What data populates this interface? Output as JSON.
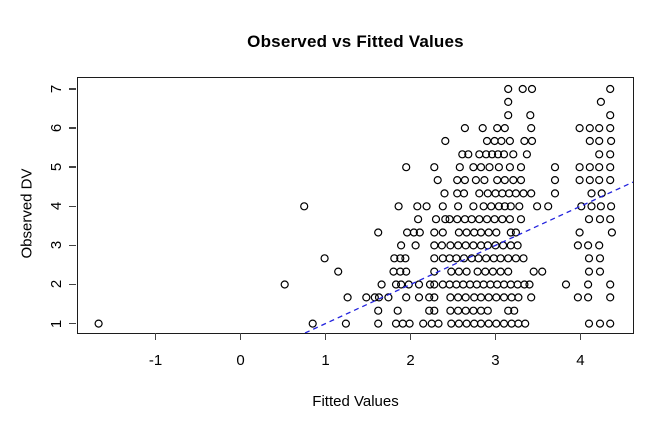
{
  "title": "Observed vs Fitted Values",
  "accent_color": "#2222dd",
  "chart_data": {
    "type": "scatter",
    "title": "Observed vs Fitted Values",
    "xlabel": "Fitted Values",
    "ylabel": "Observed DV",
    "xlim": [
      -1.912,
      4.618
    ],
    "ylim": [
      0.759,
      7.281
    ],
    "x_ticks": [
      -1,
      0,
      1,
      2,
      3,
      4
    ],
    "y_ticks": [
      1,
      2,
      3,
      4,
      5,
      6,
      7
    ],
    "grid": false,
    "legend": "none",
    "marker": {
      "shape": "open-circle",
      "radius_px": 3.5,
      "stroke": "#000000"
    },
    "reference_line": {
      "slope": 1,
      "intercept": 0,
      "style": "dashed",
      "color": "#2222dd",
      "x1": 0.759,
      "y1": 0.759,
      "x2": 4.618,
      "y2": 4.618
    },
    "points": [
      [
        -1.67,
        1
      ],
      [
        0.85,
        1
      ],
      [
        1.24,
        1
      ],
      [
        1.62,
        1
      ],
      [
        1.83,
        1
      ],
      [
        1.91,
        1
      ],
      [
        1.99,
        1
      ],
      [
        2.15,
        1
      ],
      [
        2.25,
        1
      ],
      [
        2.33,
        1
      ],
      [
        2.48,
        1
      ],
      [
        2.57,
        1
      ],
      [
        2.66,
        1
      ],
      [
        2.75,
        1
      ],
      [
        2.83,
        1
      ],
      [
        2.92,
        1
      ],
      [
        3.01,
        1
      ],
      [
        3.1,
        1
      ],
      [
        3.19,
        1
      ],
      [
        3.27,
        1
      ],
      [
        3.35,
        1
      ],
      [
        4.1,
        1
      ],
      [
        4.23,
        1
      ],
      [
        4.35,
        1
      ],
      [
        1.62,
        1.33
      ],
      [
        1.85,
        1.33
      ],
      [
        2.22,
        1.33
      ],
      [
        2.28,
        1.33
      ],
      [
        2.47,
        1.33
      ],
      [
        2.56,
        1.33
      ],
      [
        2.65,
        1.33
      ],
      [
        2.74,
        1.33
      ],
      [
        2.83,
        1.33
      ],
      [
        2.91,
        1.33
      ],
      [
        3.15,
        1.33
      ],
      [
        3.22,
        1.33
      ],
      [
        1.26,
        1.67
      ],
      [
        1.48,
        1.67
      ],
      [
        1.58,
        1.67
      ],
      [
        1.63,
        1.67
      ],
      [
        1.74,
        1.67
      ],
      [
        1.95,
        1.67
      ],
      [
        2.1,
        1.67
      ],
      [
        2.22,
        1.67
      ],
      [
        2.28,
        1.67
      ],
      [
        2.47,
        1.67
      ],
      [
        2.56,
        1.67
      ],
      [
        2.65,
        1.67
      ],
      [
        2.75,
        1.67
      ],
      [
        2.83,
        1.67
      ],
      [
        2.92,
        1.67
      ],
      [
        3.01,
        1.67
      ],
      [
        3.1,
        1.67
      ],
      [
        3.19,
        1.67
      ],
      [
        3.27,
        1.67
      ],
      [
        3.42,
        1.67
      ],
      [
        3.97,
        1.67
      ],
      [
        4.09,
        1.67
      ],
      [
        4.35,
        1.67
      ],
      [
        0.52,
        2
      ],
      [
        1.66,
        2
      ],
      [
        1.83,
        2
      ],
      [
        1.89,
        2
      ],
      [
        1.98,
        2
      ],
      [
        2.1,
        2
      ],
      [
        2.23,
        2
      ],
      [
        2.28,
        2
      ],
      [
        2.38,
        2
      ],
      [
        2.46,
        2
      ],
      [
        2.54,
        2
      ],
      [
        2.62,
        2
      ],
      [
        2.7,
        2
      ],
      [
        2.78,
        2
      ],
      [
        2.86,
        2
      ],
      [
        2.94,
        2
      ],
      [
        3.02,
        2
      ],
      [
        3.1,
        2
      ],
      [
        3.18,
        2
      ],
      [
        3.26,
        2
      ],
      [
        3.34,
        2
      ],
      [
        3.4,
        2
      ],
      [
        3.83,
        2
      ],
      [
        4.09,
        2
      ],
      [
        4.35,
        2
      ],
      [
        1.15,
        2.33
      ],
      [
        1.8,
        2.33
      ],
      [
        1.88,
        2.33
      ],
      [
        1.95,
        2.33
      ],
      [
        2.28,
        2.33
      ],
      [
        2.48,
        2.33
      ],
      [
        2.57,
        2.33
      ],
      [
        2.66,
        2.33
      ],
      [
        2.79,
        2.33
      ],
      [
        2.88,
        2.33
      ],
      [
        2.97,
        2.33
      ],
      [
        3.06,
        2.33
      ],
      [
        3.15,
        2.33
      ],
      [
        3.45,
        2.33
      ],
      [
        3.55,
        2.33
      ],
      [
        4.1,
        2.33
      ],
      [
        4.23,
        2.33
      ],
      [
        0.99,
        2.67
      ],
      [
        1.81,
        2.67
      ],
      [
        1.88,
        2.67
      ],
      [
        1.94,
        2.67
      ],
      [
        2.28,
        2.67
      ],
      [
        2.38,
        2.67
      ],
      [
        2.46,
        2.67
      ],
      [
        2.54,
        2.67
      ],
      [
        2.63,
        2.67
      ],
      [
        2.72,
        2.67
      ],
      [
        2.8,
        2.67
      ],
      [
        2.89,
        2.67
      ],
      [
        2.98,
        2.67
      ],
      [
        3.06,
        2.67
      ],
      [
        3.15,
        2.67
      ],
      [
        3.24,
        2.67
      ],
      [
        3.33,
        2.67
      ],
      [
        4.1,
        2.67
      ],
      [
        4.23,
        2.67
      ],
      [
        1.89,
        3
      ],
      [
        2.06,
        3
      ],
      [
        2.28,
        3
      ],
      [
        2.37,
        3
      ],
      [
        2.47,
        3
      ],
      [
        2.56,
        3
      ],
      [
        2.65,
        3
      ],
      [
        2.74,
        3
      ],
      [
        2.83,
        3
      ],
      [
        2.91,
        3
      ],
      [
        3.0,
        3
      ],
      [
        3.09,
        3
      ],
      [
        3.18,
        3
      ],
      [
        3.26,
        3
      ],
      [
        3.97,
        3
      ],
      [
        4.09,
        3
      ],
      [
        4.22,
        3
      ],
      [
        1.62,
        3.33
      ],
      [
        1.96,
        3.33
      ],
      [
        2.04,
        3.33
      ],
      [
        2.11,
        3.33
      ],
      [
        2.28,
        3.33
      ],
      [
        2.38,
        3.33
      ],
      [
        2.57,
        3.33
      ],
      [
        2.66,
        3.33
      ],
      [
        2.75,
        3.33
      ],
      [
        2.83,
        3.33
      ],
      [
        2.92,
        3.33
      ],
      [
        3.01,
        3.33
      ],
      [
        3.18,
        3.33
      ],
      [
        3.24,
        3.33
      ],
      [
        3.99,
        3.33
      ],
      [
        4.37,
        3.33
      ],
      [
        2.09,
        3.67
      ],
      [
        2.3,
        3.67
      ],
      [
        2.41,
        3.67
      ],
      [
        2.46,
        3.67
      ],
      [
        2.55,
        3.67
      ],
      [
        2.64,
        3.67
      ],
      [
        2.72,
        3.67
      ],
      [
        2.81,
        3.67
      ],
      [
        2.9,
        3.67
      ],
      [
        2.99,
        3.67
      ],
      [
        3.08,
        3.67
      ],
      [
        3.17,
        3.67
      ],
      [
        3.3,
        3.67
      ],
      [
        4.1,
        3.67
      ],
      [
        4.23,
        3.67
      ],
      [
        4.35,
        3.67
      ],
      [
        0.75,
        4
      ],
      [
        1.86,
        4
      ],
      [
        2.08,
        4
      ],
      [
        2.19,
        4
      ],
      [
        2.38,
        4
      ],
      [
        2.56,
        4
      ],
      [
        2.74,
        4
      ],
      [
        2.86,
        4
      ],
      [
        2.95,
        4
      ],
      [
        3.04,
        4
      ],
      [
        3.11,
        4
      ],
      [
        3.18,
        4
      ],
      [
        3.28,
        4
      ],
      [
        3.49,
        4
      ],
      [
        3.62,
        4
      ],
      [
        4.01,
        4
      ],
      [
        4.13,
        4
      ],
      [
        4.24,
        4
      ],
      [
        4.36,
        4
      ],
      [
        2.4,
        4.33
      ],
      [
        2.55,
        4.33
      ],
      [
        2.63,
        4.33
      ],
      [
        2.81,
        4.33
      ],
      [
        2.91,
        4.33
      ],
      [
        3.0,
        4.33
      ],
      [
        3.08,
        4.33
      ],
      [
        3.16,
        4.33
      ],
      [
        3.24,
        4.33
      ],
      [
        3.33,
        4.33
      ],
      [
        3.42,
        4.33
      ],
      [
        3.7,
        4.33
      ],
      [
        4.13,
        4.33
      ],
      [
        4.25,
        4.33
      ],
      [
        2.32,
        4.67
      ],
      [
        2.55,
        4.67
      ],
      [
        2.64,
        4.67
      ],
      [
        2.77,
        4.67
      ],
      [
        2.87,
        4.67
      ],
      [
        3.02,
        4.67
      ],
      [
        3.11,
        4.67
      ],
      [
        3.21,
        4.67
      ],
      [
        3.3,
        4.67
      ],
      [
        3.7,
        4.67
      ],
      [
        3.99,
        4.67
      ],
      [
        4.11,
        4.67
      ],
      [
        4.22,
        4.67
      ],
      [
        4.35,
        4.67
      ],
      [
        1.95,
        5
      ],
      [
        2.28,
        5
      ],
      [
        2.58,
        5
      ],
      [
        2.74,
        5
      ],
      [
        2.83,
        5
      ],
      [
        2.93,
        5
      ],
      [
        3.04,
        5
      ],
      [
        3.17,
        5
      ],
      [
        3.3,
        5
      ],
      [
        3.7,
        5
      ],
      [
        3.99,
        5
      ],
      [
        4.11,
        5
      ],
      [
        4.22,
        5
      ],
      [
        4.35,
        5
      ],
      [
        2.61,
        5.33
      ],
      [
        2.68,
        5.33
      ],
      [
        2.81,
        5.33
      ],
      [
        2.89,
        5.33
      ],
      [
        2.96,
        5.33
      ],
      [
        3.03,
        5.33
      ],
      [
        3.1,
        5.33
      ],
      [
        3.21,
        5.33
      ],
      [
        3.37,
        5.33
      ],
      [
        4.22,
        5.33
      ],
      [
        4.35,
        5.33
      ],
      [
        2.41,
        5.67
      ],
      [
        2.9,
        5.67
      ],
      [
        2.99,
        5.67
      ],
      [
        3.07,
        5.67
      ],
      [
        3.17,
        5.67
      ],
      [
        3.34,
        5.67
      ],
      [
        3.43,
        5.67
      ],
      [
        4.11,
        5.67
      ],
      [
        4.22,
        5.67
      ],
      [
        4.36,
        5.67
      ],
      [
        2.64,
        6
      ],
      [
        2.85,
        6
      ],
      [
        3.02,
        6
      ],
      [
        3.11,
        6
      ],
      [
        3.42,
        6
      ],
      [
        3.99,
        6
      ],
      [
        4.11,
        6
      ],
      [
        4.22,
        6
      ],
      [
        4.35,
        6
      ],
      [
        3.15,
        6.33
      ],
      [
        3.41,
        6.33
      ],
      [
        4.35,
        6.33
      ],
      [
        3.15,
        6.67
      ],
      [
        4.24,
        6.67
      ],
      [
        3.15,
        7
      ],
      [
        3.32,
        7
      ],
      [
        3.43,
        7
      ],
      [
        4.35,
        7
      ]
    ]
  }
}
